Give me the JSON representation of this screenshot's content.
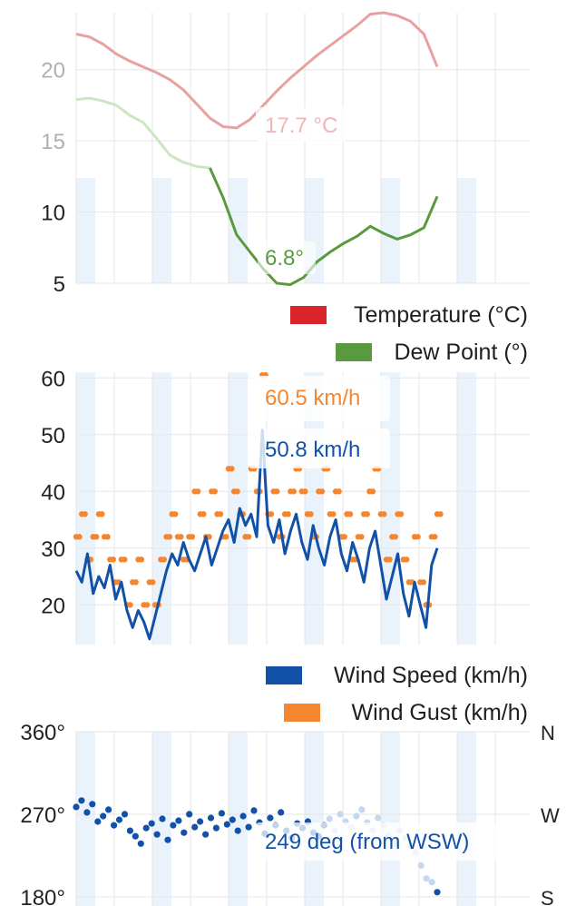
{
  "colors": {
    "temperature": "#d9262c",
    "temperature_line": "#e8a1a0",
    "dew_point": "#5a9a3e",
    "dew_point_light": "#cde6c2",
    "wind_speed": "#1152a8",
    "wind_gust": "#f5862f",
    "direction": "#1152a8",
    "direction_light": "#c5d8ef",
    "stripe": "#eaf3fb",
    "grid": "#e6e6e6"
  },
  "chart_data": [
    {
      "type": "line",
      "title": "",
      "ylim": [
        5,
        24
      ],
      "yticks": [
        "5",
        "10",
        "15",
        "20"
      ],
      "legend_placement": "bottom-right",
      "series": [
        {
          "name": "Temperature (°C)",
          "values": [
            22.5,
            22.3,
            21.8,
            21.1,
            20.6,
            20.2,
            19.8,
            19.3,
            18.6,
            17.6,
            16.6,
            16.0,
            15.9,
            16.5,
            17.5,
            18.5,
            19.4,
            20.2,
            21.0,
            21.7,
            22.4,
            23.1,
            23.9,
            24.0,
            23.8,
            23.4,
            22.5,
            20.2
          ]
        },
        {
          "name": "Dew Point (°)",
          "values": [
            17.9,
            18.0,
            17.8,
            17.5,
            16.8,
            16.3,
            15.2,
            14.0,
            13.5,
            13.2,
            13.1,
            11.0,
            8.4,
            7.2,
            6.0,
            5.0,
            4.9,
            5.4,
            6.5,
            7.2,
            7.8,
            8.3,
            9.0,
            8.5,
            8.1,
            8.4,
            8.9,
            11.1
          ]
        }
      ],
      "annotations": [
        "17.7 °C",
        "6.8°"
      ]
    },
    {
      "type": "line",
      "title": "",
      "ylim": [
        13,
        61
      ],
      "yticks": [
        "20",
        "30",
        "40",
        "50",
        "60"
      ],
      "legend_placement": "bottom-right",
      "series": [
        {
          "name": "Wind Speed (km/h)",
          "values": [
            26,
            24,
            29,
            22,
            25,
            23,
            27,
            21,
            24,
            19,
            16,
            19,
            17,
            14,
            18,
            22,
            26,
            29,
            27,
            31,
            28,
            26,
            29,
            32,
            27,
            30,
            33,
            35,
            31,
            37,
            34,
            36,
            32,
            50.8,
            34,
            31,
            35,
            29,
            33,
            36,
            31,
            28,
            34,
            30,
            27,
            32,
            35,
            29,
            26,
            31,
            28,
            24,
            30,
            33,
            27,
            21,
            25,
            29,
            22,
            18,
            24,
            20,
            16,
            27,
            30
          ]
        },
        {
          "name": "Wind Gust (km/h)",
          "values": [
            32,
            36,
            28,
            32,
            36,
            32,
            28,
            24,
            28,
            20,
            24,
            28,
            20,
            24,
            20,
            28,
            32,
            36,
            32,
            28,
            32,
            40,
            36,
            32,
            40,
            36,
            32,
            44,
            40,
            36,
            32,
            44,
            40,
            60.5,
            36,
            40,
            32,
            36,
            40,
            44,
            40,
            36,
            32,
            40,
            44,
            36,
            40,
            32,
            36,
            28,
            32,
            36,
            40,
            44,
            36,
            28,
            32,
            36,
            28,
            24,
            32,
            24,
            20,
            32,
            36
          ]
        }
      ],
      "annotations": [
        "60.5 km/h",
        "50.8 km/h"
      ]
    },
    {
      "type": "scatter",
      "title": "",
      "ylim": [
        170,
        360
      ],
      "yticks": [
        "180°",
        "270°",
        "360°"
      ],
      "right_labels": [
        "S",
        "W",
        "N"
      ],
      "series": [
        {
          "name": "",
          "values": [
            278,
            285,
            272,
            281,
            262,
            268,
            275,
            258,
            264,
            270,
            252,
            246,
            238,
            255,
            260,
            248,
            265,
            242,
            258,
            263,
            250,
            270,
            256,
            262,
            248,
            266,
            255,
            271,
            259,
            264,
            252,
            268,
            256,
            274,
            261,
            249,
            266,
            258,
            272,
            252,
            244,
            260,
            255,
            262,
            250,
            246,
            258,
            265,
            252,
            270,
            262,
            256,
            268,
            275,
            261,
            252,
            266,
            258,
            247,
            238,
            252,
            244,
            236,
            228,
            214,
            200,
            196,
            185
          ]
        }
      ],
      "annotations": [
        "249 deg (from WSW)"
      ]
    }
  ]
}
